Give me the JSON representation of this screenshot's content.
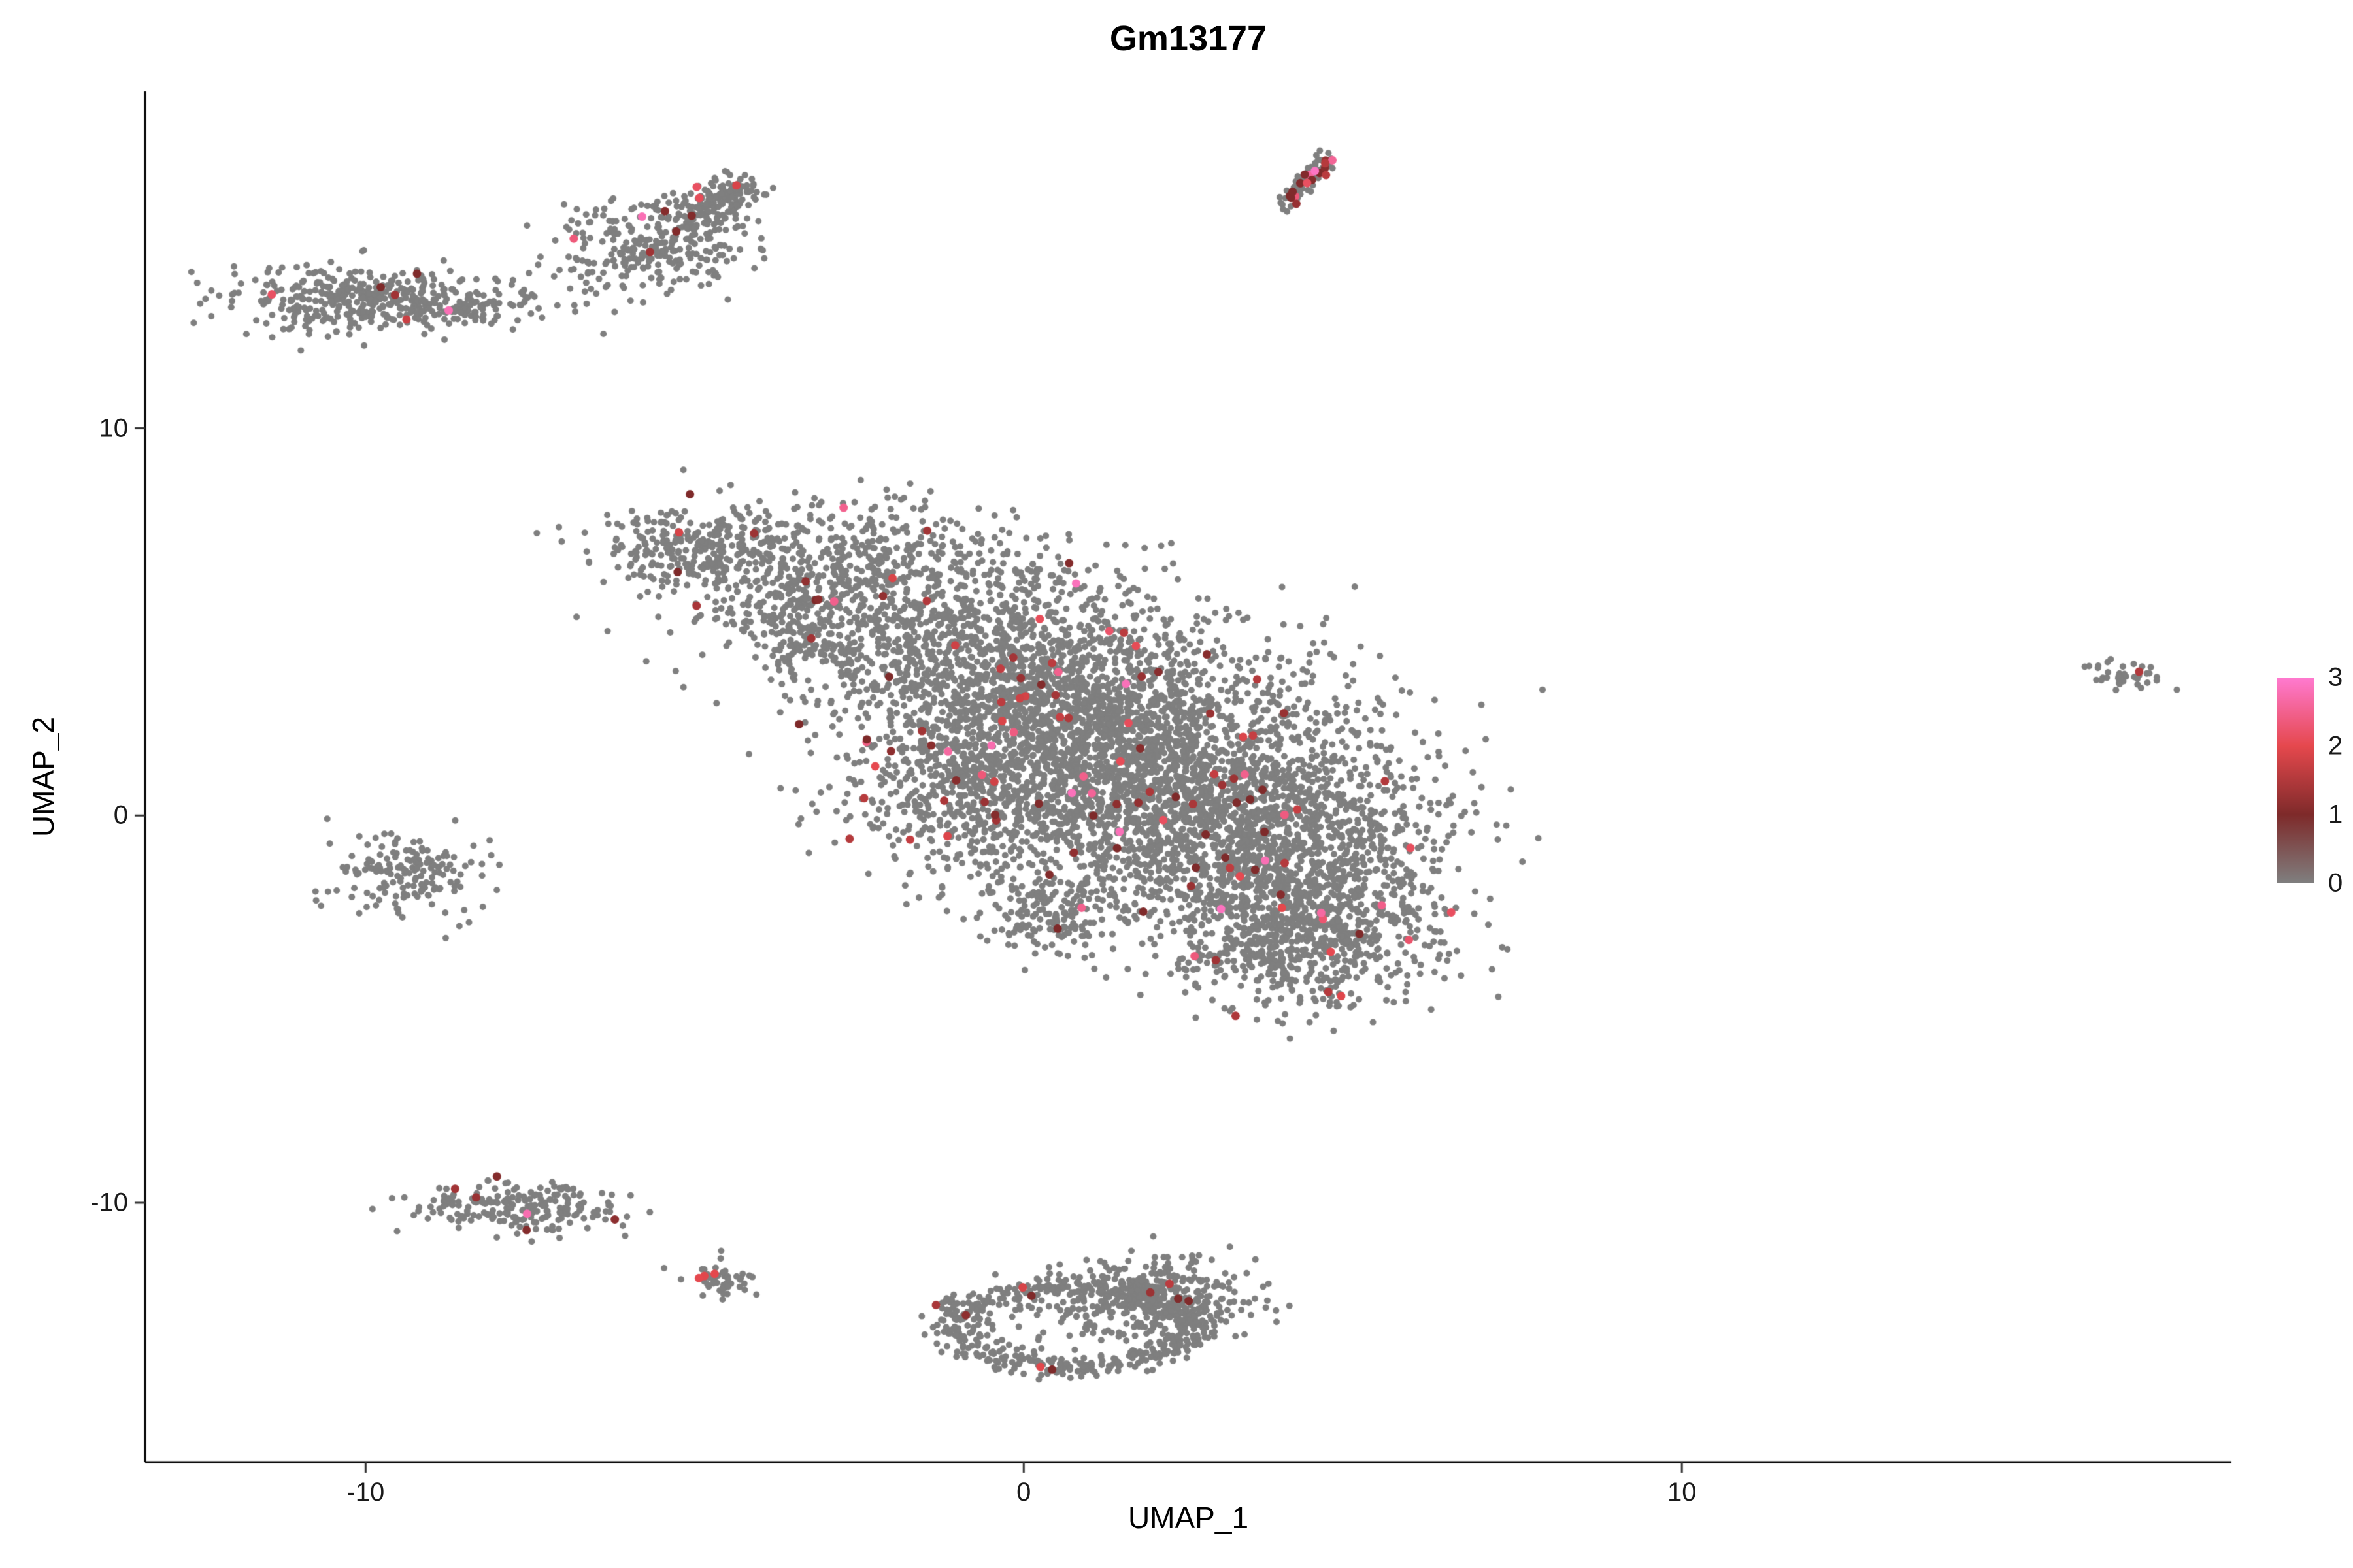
{
  "chart_data": {
    "type": "scatter",
    "title": "Gm13177",
    "xlabel": "UMAP_1",
    "ylabel": "UMAP_2",
    "xlim": [
      -13.35,
      18.35
    ],
    "ylim": [
      -16.7,
      18.7
    ],
    "xticks": [
      -10,
      0,
      10
    ],
    "yticks": [
      -10,
      0,
      10
    ],
    "grid": false,
    "base_color": "#7F7F7F",
    "legend": {
      "position": "right",
      "ticks": [
        3,
        2,
        1,
        0
      ],
      "stops": [
        {
          "v": 0,
          "color": "#7F7F7F"
        },
        {
          "v": 1,
          "color": "#7E2A2A"
        },
        {
          "v": 2,
          "color": "#E5484D"
        },
        {
          "v": 3,
          "color": "#FF7AD0"
        }
      ]
    },
    "clusters": [
      {
        "name": "islet-top-left-a",
        "type": "gauss",
        "cx": -10.3,
        "cy": 13.35,
        "sx": 0.85,
        "sy": 0.42,
        "n": 300,
        "c": 5
      },
      {
        "name": "islet-top-left-b",
        "type": "gauss",
        "cx": -8.7,
        "cy": 13.15,
        "sx": 0.8,
        "sy": 0.28,
        "n": 160,
        "c": 1
      },
      {
        "name": "islet-upper-head",
        "type": "gauss",
        "cx": -5.6,
        "cy": 14.7,
        "sx": 0.75,
        "sy": 0.62,
        "n": 280,
        "c": 4
      },
      {
        "name": "islet-upper-arm",
        "type": "line",
        "x0": -5.1,
        "y0": 15.4,
        "x1": -4.25,
        "y1": 16.35,
        "w": 0.22,
        "n": 150,
        "c": 5
      },
      {
        "name": "streak-top",
        "type": "line",
        "x0": 3.95,
        "y0": 15.75,
        "x1": 4.6,
        "y1": 17.0,
        "w": 0.09,
        "n": 70,
        "c": 18
      },
      {
        "name": "main-arm-left",
        "type": "gauss",
        "cx": -5.0,
        "cy": 6.9,
        "sx": 0.8,
        "sy": 0.5,
        "n": 230,
        "c": 2
      },
      {
        "name": "main-upper-left",
        "type": "gauss",
        "cx": -3.1,
        "cy": 6.3,
        "sx": 1.1,
        "sy": 1.0,
        "n": 520,
        "c": 8
      },
      {
        "name": "main-spur",
        "type": "gauss",
        "cx": -3.3,
        "cy": 4.4,
        "sx": 0.6,
        "sy": 0.3,
        "rot": -25,
        "n": 90,
        "c": 1
      },
      {
        "name": "main-upper-mid",
        "type": "gauss",
        "cx": -0.9,
        "cy": 4.6,
        "sx": 1.3,
        "sy": 1.4,
        "n": 900,
        "c": 16
      },
      {
        "name": "main-core-a",
        "type": "gauss",
        "cx": 0.8,
        "cy": 2.5,
        "sx": 1.6,
        "sy": 1.5,
        "n": 1400,
        "c": 28
      },
      {
        "name": "main-core-b",
        "type": "gauss",
        "cx": 2.4,
        "cy": 0.8,
        "sx": 1.7,
        "sy": 1.4,
        "n": 1600,
        "c": 30
      },
      {
        "name": "main-lower-left",
        "type": "gauss",
        "cx": -0.6,
        "cy": 0.4,
        "sx": 1.0,
        "sy": 1.1,
        "n": 450,
        "c": 8
      },
      {
        "name": "main-lower-mid",
        "type": "gauss",
        "cx": 3.8,
        "cy": -1.2,
        "sx": 1.3,
        "sy": 1.2,
        "n": 1000,
        "c": 18
      },
      {
        "name": "main-lower-tip",
        "type": "gauss",
        "cx": 4.2,
        "cy": -3.3,
        "sx": 1.0,
        "sy": 0.9,
        "n": 620,
        "c": 10
      },
      {
        "name": "main-notch",
        "type": "gauss",
        "cx": 0.3,
        "cy": -2.6,
        "sx": 0.5,
        "sy": 0.6,
        "n": 130,
        "c": 2
      },
      {
        "name": "islet-left",
        "type": "gauss",
        "cx": -9.3,
        "cy": -1.5,
        "sx": 0.55,
        "sy": 0.5,
        "n": 170,
        "c": 0
      },
      {
        "name": "islet-bottom-left",
        "type": "gauss",
        "cx": -7.7,
        "cy": -10.1,
        "sx": 0.8,
        "sy": 0.33,
        "n": 210,
        "c": 6
      },
      {
        "name": "islet-tiny",
        "type": "gauss",
        "cx": -4.6,
        "cy": -12.0,
        "sx": 0.24,
        "sy": 0.24,
        "n": 45,
        "c": 3
      },
      {
        "name": "ring-bottom",
        "type": "ring",
        "cx": 0.75,
        "cy": -13.2,
        "rx": 1.8,
        "ry": 1.05,
        "jitter": 0.14,
        "n": 520,
        "c": 6
      },
      {
        "name": "ring-blob",
        "type": "gauss",
        "cx": 2.0,
        "cy": -12.4,
        "sx": 0.75,
        "sy": 0.5,
        "n": 330,
        "c": 3
      },
      {
        "name": "ring-inner",
        "type": "gauss",
        "cx": 0.8,
        "cy": -13.1,
        "sx": 0.8,
        "sy": 0.5,
        "n": 50,
        "c": 1
      },
      {
        "name": "islet-far-right",
        "type": "gauss",
        "cx": 16.7,
        "cy": 3.6,
        "sx": 0.3,
        "sy": 0.2,
        "rot": -20,
        "n": 38,
        "c": 1
      }
    ]
  }
}
